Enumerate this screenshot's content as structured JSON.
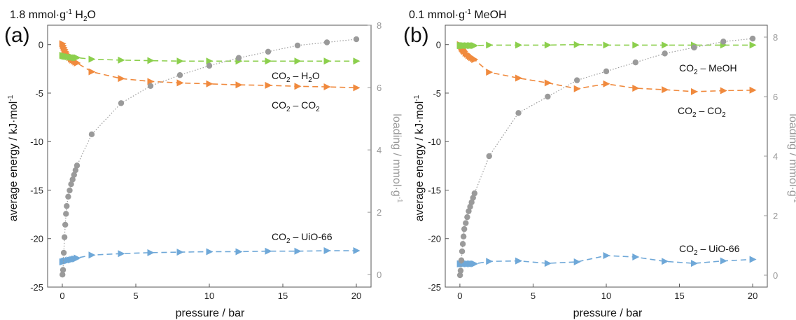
{
  "panels": [
    {
      "letter": "(a)",
      "title": {
        "pre": "1.8 mmol·g",
        "sup": "-1",
        "mid": " H",
        "sub": "2",
        "post": "O"
      },
      "ylabel": {
        "pre": "average energy / kJ·mol",
        "sup": "-1"
      },
      "y2label": {
        "pre": "loading / mmol·g",
        "sup": "-1"
      },
      "annotations": [
        {
          "name": "co2-h2o",
          "a": "CO",
          "asub": "2",
          "dash": " – ",
          "b": "H",
          "bsub": "2",
          "c": "O"
        },
        {
          "name": "co2-co2",
          "a": "CO",
          "asub": "2",
          "dash": " – ",
          "b": "CO",
          "bsub": "2",
          "c": ""
        },
        {
          "name": "co2-uio66",
          "a": "CO",
          "asub": "2",
          "dash": " – ",
          "b": "UiO-66",
          "bsub": "",
          "c": ""
        }
      ]
    },
    {
      "letter": "(b)",
      "title": {
        "pre": "0.1 mmol·g",
        "sup": "-1",
        "mid": " MeOH",
        "sub": "",
        "post": ""
      },
      "ylabel": {
        "pre": "average energy / kJ·mol",
        "sup": "-1"
      },
      "y2label": {
        "pre": "loading / mmol·g",
        "sup": "-1"
      },
      "annotations": [
        {
          "name": "co2-meoh",
          "a": "CO",
          "asub": "2",
          "dash": " – ",
          "b": "MeOH",
          "bsub": "",
          "c": ""
        },
        {
          "name": "co2-co2",
          "a": "CO",
          "asub": "2",
          "dash": " – ",
          "b": "CO",
          "bsub": "2",
          "c": ""
        },
        {
          "name": "co2-uio66",
          "a": "CO",
          "asub": "2",
          "dash": " – ",
          "b": "UiO-66",
          "bsub": "",
          "c": ""
        }
      ]
    }
  ],
  "colors": {
    "co2_uio66": "#6fa8d8",
    "co2_co2": "#f08a3e",
    "co2_guest": "#8ccf4d",
    "loading": "#9a9a9a"
  },
  "chart_data": [
    {
      "type": "line",
      "panel": "(a)",
      "xlabel": "pressure / bar",
      "ylabel": "average energy / kJ·mol-1",
      "y2label": "loading / mmol·g-1",
      "xlim": [
        -1,
        21
      ],
      "ylim": [
        -25,
        2
      ],
      "y2lim": [
        -0.4,
        8
      ],
      "xticks": [
        0,
        5,
        10,
        15,
        20
      ],
      "yticks": [
        -25,
        -20,
        -15,
        -10,
        -5,
        0
      ],
      "y2ticks": [
        0,
        2,
        4,
        6,
        8
      ],
      "grid": false,
      "series": [
        {
          "key": "co2_uio66",
          "axis": "left",
          "marker": "triangle",
          "line": "dashed",
          "x": [
            0.01,
            0.05,
            0.1,
            0.15,
            0.2,
            0.25,
            0.3,
            0.4,
            0.5,
            0.6,
            0.7,
            0.8,
            0.9,
            1,
            2,
            4,
            6,
            8,
            10,
            12,
            14,
            16,
            18,
            20
          ],
          "y": [
            -22.4,
            -22.4,
            -22.35,
            -22.35,
            -22.3,
            -22.3,
            -22.3,
            -22.25,
            -22.2,
            -22.2,
            -22.15,
            -22.1,
            -22.1,
            -22.0,
            -21.7,
            -21.55,
            -21.45,
            -21.4,
            -21.35,
            -21.35,
            -21.3,
            -21.3,
            -21.25,
            -21.25
          ]
        },
        {
          "key": "co2_co2",
          "axis": "left",
          "marker": "triangle",
          "line": "dashed",
          "x": [
            0.01,
            0.05,
            0.1,
            0.15,
            0.2,
            0.25,
            0.3,
            0.4,
            0.5,
            0.6,
            0.7,
            0.8,
            0.9,
            1,
            2,
            4,
            6,
            8,
            10,
            12,
            14,
            16,
            18,
            20
          ],
          "y": [
            0.1,
            -0.1,
            -0.3,
            -0.5,
            -0.7,
            -0.85,
            -1.0,
            -1.2,
            -1.35,
            -1.5,
            -1.6,
            -1.7,
            -1.8,
            -1.9,
            -2.8,
            -3.5,
            -3.8,
            -3.95,
            -4.05,
            -4.15,
            -4.2,
            -4.3,
            -4.35,
            -4.45
          ]
        },
        {
          "key": "co2_guest",
          "axis": "left",
          "marker": "triangle",
          "line": "dashed",
          "x": [
            0.01,
            0.05,
            0.1,
            0.15,
            0.2,
            0.25,
            0.3,
            0.4,
            0.5,
            0.6,
            0.7,
            0.8,
            0.9,
            1,
            2,
            4,
            6,
            8,
            10,
            12,
            14,
            16,
            18,
            20
          ],
          "y": [
            -1.1,
            -1.15,
            -1.15,
            -1.2,
            -1.2,
            -1.2,
            -1.25,
            -1.25,
            -1.3,
            -1.3,
            -1.3,
            -1.35,
            -1.35,
            -1.35,
            -1.5,
            -1.6,
            -1.65,
            -1.7,
            -1.7,
            -1.7,
            -1.7,
            -1.7,
            -1.7,
            -1.7
          ]
        },
        {
          "key": "loading",
          "axis": "right",
          "marker": "circle",
          "line": "dotted",
          "x": [
            0.01,
            0.05,
            0.1,
            0.15,
            0.2,
            0.25,
            0.3,
            0.4,
            0.5,
            0.6,
            0.7,
            0.8,
            0.9,
            1,
            2,
            4,
            6,
            8,
            10,
            12,
            14,
            16,
            18,
            20
          ],
          "y": [
            0.0,
            0.15,
            0.7,
            1.2,
            1.6,
            1.95,
            2.2,
            2.5,
            2.7,
            2.9,
            3.05,
            3.2,
            3.35,
            3.5,
            4.5,
            5.5,
            6.05,
            6.4,
            6.7,
            6.95,
            7.15,
            7.35,
            7.45,
            7.55
          ]
        }
      ]
    },
    {
      "type": "line",
      "panel": "(b)",
      "xlabel": "pressure / bar",
      "ylabel": "average energy / kJ·mol-1",
      "y2label": "loading / mmol·g-1",
      "xlim": [
        -1,
        21
      ],
      "ylim": [
        -25,
        2
      ],
      "y2lim": [
        -0.4,
        8.4
      ],
      "xticks": [
        0,
        5,
        10,
        15,
        20
      ],
      "yticks": [
        -25,
        -20,
        -15,
        -10,
        -5,
        0
      ],
      "y2ticks": [
        0,
        2,
        4,
        6,
        8
      ],
      "grid": false,
      "series": [
        {
          "key": "co2_uio66",
          "axis": "left",
          "marker": "triangle",
          "line": "dashed",
          "x": [
            0.01,
            0.05,
            0.1,
            0.15,
            0.2,
            0.25,
            0.3,
            0.4,
            0.5,
            0.6,
            0.7,
            0.8,
            0.9,
            1,
            2,
            4,
            6,
            8,
            10,
            12,
            14,
            16,
            18,
            20
          ],
          "y": [
            -22.6,
            -22.6,
            -22.6,
            -22.6,
            -22.6,
            -22.6,
            -22.6,
            -22.6,
            -22.6,
            -22.6,
            -22.6,
            -22.6,
            -22.6,
            -22.6,
            -22.35,
            -22.3,
            -22.55,
            -22.4,
            -21.75,
            -21.9,
            -22.35,
            -22.55,
            -22.3,
            -22.15
          ]
        },
        {
          "key": "co2_co2",
          "axis": "left",
          "marker": "triangle",
          "line": "dashed",
          "x": [
            0.01,
            0.05,
            0.1,
            0.15,
            0.2,
            0.25,
            0.3,
            0.4,
            0.5,
            0.6,
            0.7,
            0.8,
            0.9,
            1,
            2,
            4,
            6,
            8,
            10,
            12,
            14,
            16,
            18,
            20
          ],
          "y": [
            0.0,
            -0.1,
            -0.25,
            -0.4,
            -0.5,
            -0.6,
            -0.7,
            -0.9,
            -1.0,
            -1.15,
            -1.25,
            -1.35,
            -1.45,
            -1.55,
            -2.85,
            -3.45,
            -3.95,
            -4.55,
            -4.05,
            -4.5,
            -4.65,
            -4.85,
            -4.75,
            -4.7
          ]
        },
        {
          "key": "co2_guest",
          "axis": "left",
          "marker": "triangle",
          "line": "dashed",
          "x": [
            0.01,
            0.05,
            0.1,
            0.15,
            0.2,
            0.25,
            0.3,
            0.4,
            0.5,
            0.6,
            0.7,
            0.8,
            0.9,
            1,
            2,
            4,
            6,
            8,
            10,
            12,
            14,
            16,
            18,
            20
          ],
          "y": [
            -0.1,
            -0.1,
            -0.1,
            -0.1,
            -0.1,
            -0.1,
            -0.1,
            -0.1,
            -0.1,
            -0.1,
            -0.1,
            -0.1,
            -0.1,
            -0.1,
            -0.05,
            -0.05,
            -0.05,
            0.0,
            -0.05,
            -0.05,
            -0.05,
            -0.05,
            -0.05,
            -0.05
          ]
        },
        {
          "key": "loading",
          "axis": "right",
          "marker": "circle",
          "line": "dotted",
          "x": [
            0.01,
            0.05,
            0.1,
            0.15,
            0.2,
            0.25,
            0.3,
            0.4,
            0.5,
            0.6,
            0.7,
            0.8,
            0.9,
            1,
            2,
            4,
            6,
            8,
            10,
            12,
            14,
            16,
            18,
            20
          ],
          "y": [
            0.0,
            0.15,
            0.5,
            0.8,
            1.05,
            1.3,
            1.55,
            1.75,
            1.95,
            2.15,
            2.3,
            2.45,
            2.6,
            2.75,
            4.0,
            5.45,
            6.0,
            6.55,
            6.85,
            7.15,
            7.45,
            7.65,
            7.85,
            7.95
          ]
        }
      ]
    }
  ]
}
